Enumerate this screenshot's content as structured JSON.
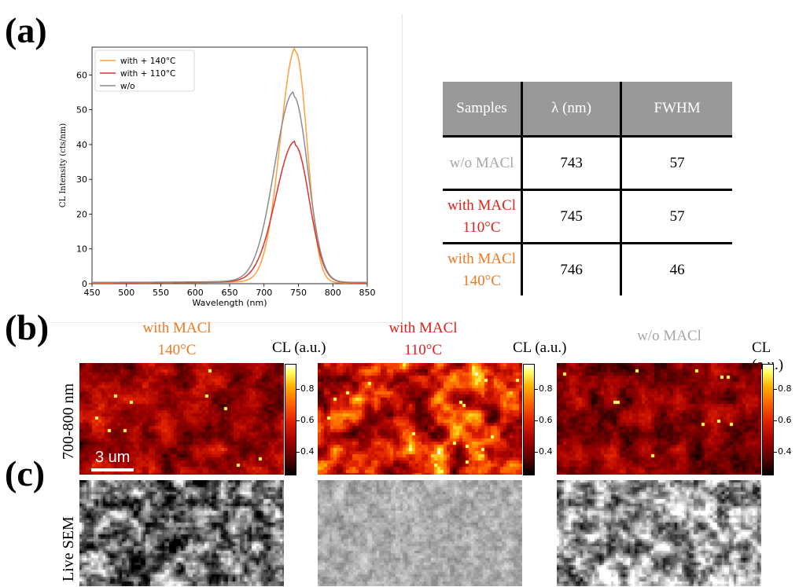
{
  "panel_labels": {
    "a": "(a)",
    "b": "(b)",
    "c": "(c)"
  },
  "chart_data": {
    "type": "line",
    "xlabel": "Wavelength (nm)",
    "ylabel": "CL Intensity (cts/nm)",
    "xlim": [
      450,
      850
    ],
    "ylim": [
      0,
      68
    ],
    "xticks": [
      450,
      500,
      550,
      600,
      650,
      700,
      750,
      800,
      850
    ],
    "yticks": [
      0,
      10,
      20,
      30,
      40,
      50,
      60
    ],
    "legend_position": "top-left",
    "grid": false,
    "series": [
      {
        "name": "with + 140°C",
        "color": "#ff9f3a",
        "peak_x": 746,
        "peak_y": 66.5,
        "fwhm": 46,
        "baseline": 0.2
      },
      {
        "name": "with + 110°C",
        "color": "#e03030",
        "peak_x": 745,
        "peak_y": 39.5,
        "fwhm": 57,
        "baseline": 0.3
      },
      {
        "name": "w/o",
        "color": "#8c8c8c",
        "peak_x": 743,
        "peak_y": 53.5,
        "fwhm": 57,
        "baseline": 0.4
      }
    ]
  },
  "table": {
    "headers": [
      "Samples",
      "λ (nm)",
      "FWHM"
    ],
    "rows": [
      {
        "sample_line1": "w/o MACl",
        "sample_line2": "",
        "color": "#a6a6a6",
        "lambda": "743",
        "fwhm": "57"
      },
      {
        "sample_line1": "with MACl",
        "sample_line2": "110°C",
        "color": "#e0201a",
        "lambda": "745",
        "fwhm": "57"
      },
      {
        "sample_line1": "with MACl",
        "sample_line2": "140°C",
        "color": "#f07820",
        "lambda": "746",
        "fwhm": "46"
      }
    ]
  },
  "maps": {
    "row_b_label": "700-800 nm",
    "row_c_label": "Live SEM",
    "colorbar_label": "CL (a.u.)",
    "colorbar_ticks": [
      "0.8",
      "0.6",
      "0.4"
    ],
    "scalebar": "3 um",
    "columns": [
      {
        "line1": "with MACl",
        "line2": "140°C",
        "color": "#f07820"
      },
      {
        "line1": "with MACl",
        "line2": "110°C",
        "color": "#e0201a"
      },
      {
        "line1": "w/o MACl",
        "line2": "",
        "color": "#a6a6a6"
      }
    ]
  }
}
